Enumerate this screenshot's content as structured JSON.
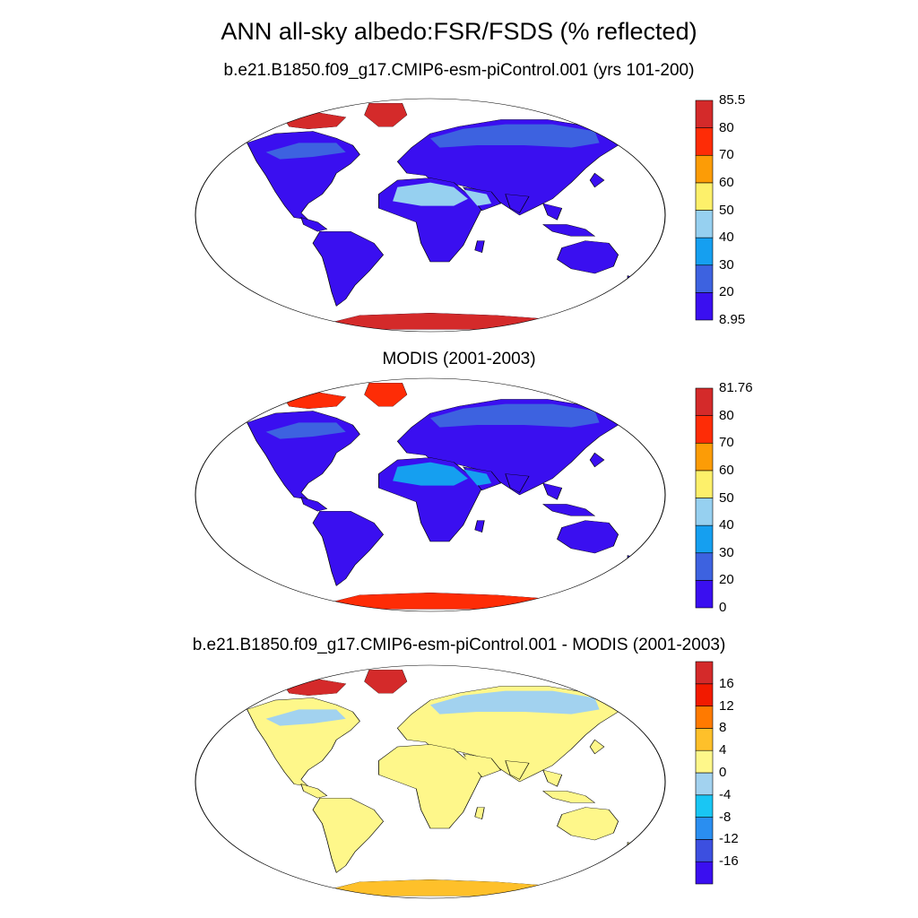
{
  "title": "ANN all-sky albedo:FSR/FSDS (% reflected)",
  "panels": [
    {
      "title": "b.e21.B1850.f09_g17.CMIP6-esm-piControl.001 (yrs 101-200)",
      "colorbar": {
        "colors": [
          "#3a0ff0",
          "#3d62e0",
          "#159ff0",
          "#96d0f0",
          "#fdf06a",
          "#fc9c06",
          "#fe2c06",
          "#d42a2a"
        ],
        "labels": [
          "8.95",
          "20",
          "30",
          "40",
          "50",
          "60",
          "70",
          "80",
          "85.5"
        ]
      }
    },
    {
      "title": "MODIS (2001-2003)",
      "colorbar": {
        "colors": [
          "#3a0ff0",
          "#3d62e0",
          "#159ff0",
          "#96d0f0",
          "#fdf06a",
          "#fc9c06",
          "#fe2c06",
          "#d42a2a"
        ],
        "labels": [
          "0",
          "20",
          "30",
          "40",
          "50",
          "60",
          "70",
          "80",
          "81.76"
        ]
      }
    },
    {
      "title": "b.e21.B1850.f09_g17.CMIP6-esm-piControl.001 - MODIS (2001-2003)",
      "colorbar": {
        "colors": [
          "#3a0ff0",
          "#3c4fe0",
          "#2a8ef0",
          "#19c6f4",
          "#a2d2ef",
          "#fef78a",
          "#fec02a",
          "#ff7a00",
          "#f21a00",
          "#d42a2a"
        ],
        "labels": [
          "-16",
          "-12",
          "-8",
          "-4",
          "0",
          "4",
          "8",
          "12",
          "16"
        ]
      }
    }
  ]
}
